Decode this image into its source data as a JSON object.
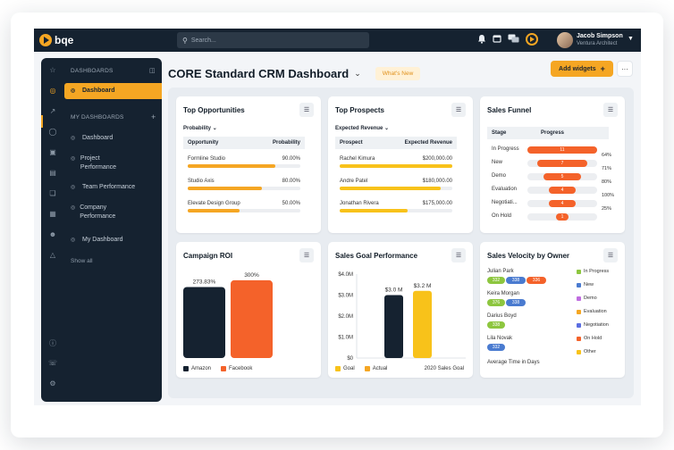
{
  "topbar": {
    "logo": "bqe",
    "search_placeholder": "Search...",
    "user_name": "Jacob Simpson",
    "user_role": "Ventura Architect"
  },
  "sidebar": {
    "section_dashboards": "DASHBOARDS",
    "active_item": "Dashboard",
    "section_my_dashboards": "MY DASHBOARDS",
    "items": [
      "Dashboard",
      "Project Performance",
      "Team Performance",
      "Company Performance",
      "My Dashboard"
    ],
    "show_all": "Show all"
  },
  "header": {
    "title": "CORE Standard CRM Dashboard",
    "whats_new": "What's New",
    "add_widgets": "Add widgets",
    "add_icon": "+",
    "more": "···"
  },
  "top_opportunities": {
    "title": "Top Opportunities",
    "filter": "Probability",
    "col1": "Opportunity",
    "col2": "Probability",
    "rows": [
      {
        "name": "Formline Studio",
        "value": "90.00%",
        "fill": 0.78
      },
      {
        "name": "Studio Axis",
        "value": "80.00%",
        "fill": 0.66
      },
      {
        "name": "Elevate Design Group",
        "value": "50.00%",
        "fill": 0.46
      }
    ]
  },
  "top_prospects": {
    "title": "Top Prospects",
    "filter": "Expected Revenue",
    "col1": "Prospect",
    "col2": "Expected Revenue",
    "rows": [
      {
        "name": "Rachel Kimura",
        "value": "$200,000.00",
        "fill": 1.0
      },
      {
        "name": "Andre Patel",
        "value": "$180,000.00",
        "fill": 0.9
      },
      {
        "name": "Jonathan Rivera",
        "value": "$175,000.00",
        "fill": 0.6
      }
    ]
  },
  "sales_funnel": {
    "title": "Sales Funnel",
    "col1": "Stage",
    "col2": "Progress",
    "rows": [
      {
        "stage": "In Progress",
        "count": "11",
        "pct": "64%",
        "fill": 1.0
      },
      {
        "stage": "New",
        "count": "7",
        "pct": "71%",
        "fill": 0.72
      },
      {
        "stage": "Demo",
        "count": "5",
        "pct": "80%",
        "fill": 0.53
      },
      {
        "stage": "Evaluation",
        "count": "4",
        "pct": "100%",
        "fill": 0.38
      },
      {
        "stage": "Negotiati...",
        "count": "4",
        "pct": "25%",
        "fill": 0.38
      },
      {
        "stage": "On Hold",
        "count": "1",
        "pct": "",
        "fill": 0.18
      }
    ]
  },
  "campaign_roi": {
    "title": "Campaign ROI",
    "labels": [
      "273.83%",
      "300%"
    ],
    "legend": [
      "Amazon",
      "Facebook"
    ]
  },
  "sales_goal": {
    "title": "Sales Goal Performance",
    "y_ticks": [
      "$4.0M",
      "$3.0M",
      "$2.0M",
      "$1.0M",
      "$0"
    ],
    "bar_labels": [
      "$3.0 M",
      "$3.2 M"
    ],
    "legend": [
      "Goal",
      "Actual"
    ],
    "x_label": "2020 Sales Goal"
  },
  "sales_velocity": {
    "title": "Sales Velocity by Owner",
    "owners": [
      {
        "name": "Julian Park",
        "pills": [
          "332",
          "338",
          "336"
        ]
      },
      {
        "name": "Keira Morgan",
        "pills": [
          "376",
          "338"
        ]
      },
      {
        "name": "Darius Boyd",
        "pills": [
          "338"
        ]
      },
      {
        "name": "Lila Novak",
        "pills": [
          "332"
        ]
      }
    ],
    "footer": "Average Time in Days",
    "legend": [
      "In Progress",
      "New",
      "Demo",
      "Evaluation",
      "Negotiation",
      "On Hold",
      "Other"
    ]
  },
  "chart_data": [
    {
      "type": "bar",
      "title": "Campaign ROI",
      "categories": [
        "Amazon",
        "Facebook"
      ],
      "values": [
        273.83,
        300
      ]
    },
    {
      "type": "bar",
      "title": "Sales Goal Performance",
      "categories": [
        "Goal",
        "Actual"
      ],
      "values": [
        3.0,
        3.2
      ],
      "xlabel": "2020 Sales Goal",
      "ylim": [
        0,
        4.0
      ]
    }
  ],
  "colors": {
    "accent": "#f5a623",
    "navy": "#152230",
    "yellow": "#f8c21a",
    "funnel": "#f4622a",
    "facebook": "#f4622a"
  }
}
